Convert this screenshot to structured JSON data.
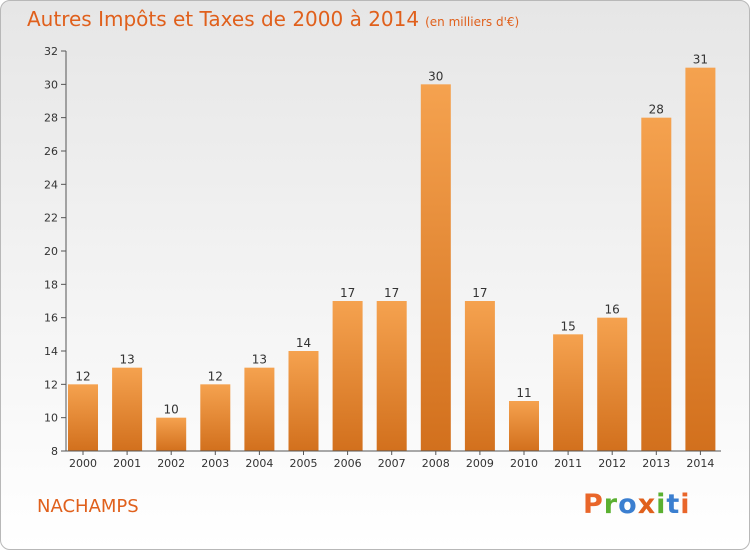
{
  "header": {
    "title": "Autres Impôts et Taxes de 2000 à 2014",
    "unit": "(en milliers d'€)"
  },
  "footer": {
    "commune": "NACHAMPS",
    "logo_text": "Proxiti"
  },
  "colors": {
    "title": "#e0601c",
    "bar_top": "#f5a24f",
    "bar_bottom": "#d2701d",
    "logo_letters": [
      "#e9662a",
      "#5ab031",
      "#3b7fd0",
      "#e0601c",
      "#5ab031",
      "#3b7fd0",
      "#e9662a"
    ]
  },
  "chart_data": {
    "type": "bar",
    "title": "Autres Impôts et Taxes de 2000 à 2014",
    "categories": [
      "2000",
      "2001",
      "2002",
      "2003",
      "2004",
      "2005",
      "2006",
      "2007",
      "2008",
      "2009",
      "2010",
      "2011",
      "2012",
      "2013",
      "2014"
    ],
    "values": [
      12,
      13,
      10,
      12,
      13,
      14,
      17,
      17,
      30,
      17,
      11,
      15,
      16,
      28,
      31
    ],
    "ylim": [
      8,
      32
    ],
    "yticks": [
      8,
      10,
      12,
      14,
      16,
      18,
      20,
      22,
      24,
      26,
      28,
      30,
      32
    ],
    "grid": false,
    "legend": "none"
  }
}
